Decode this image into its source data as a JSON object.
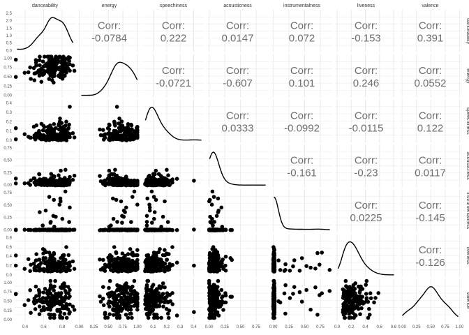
{
  "chart_data": {
    "type": "scatter-matrix",
    "variables": [
      "danceability",
      "energy",
      "speechiness",
      "acousticness",
      "instrumentalness",
      "liveness",
      "valence"
    ],
    "corr_label": "Corr:",
    "correlations": [
      {
        "row": "energy",
        "col": "danceability",
        "text": "-0.0784"
      },
      {
        "row": "speechiness",
        "col": "danceability",
        "text": "0.222"
      },
      {
        "row": "acousticness",
        "col": "danceability",
        "text": "0.0147"
      },
      {
        "row": "instrumentalness",
        "col": "danceability",
        "text": "0.072"
      },
      {
        "row": "liveness",
        "col": "danceability",
        "text": "-0.153"
      },
      {
        "row": "valence",
        "col": "danceability",
        "text": "0.391"
      },
      {
        "row": "speechiness",
        "col": "energy",
        "text": "-0.0721"
      },
      {
        "row": "acousticness",
        "col": "energy",
        "text": "-0.607"
      },
      {
        "row": "instrumentalness",
        "col": "energy",
        "text": "0.101"
      },
      {
        "row": "liveness",
        "col": "energy",
        "text": "0.246"
      },
      {
        "row": "valence",
        "col": "energy",
        "text": "0.0552"
      },
      {
        "row": "acousticness",
        "col": "speechiness",
        "text": "0.0333"
      },
      {
        "row": "instrumentalness",
        "col": "speechiness",
        "text": "-0.0992"
      },
      {
        "row": "liveness",
        "col": "speechiness",
        "text": "-0.0115"
      },
      {
        "row": "valence",
        "col": "speechiness",
        "text": "0.122"
      },
      {
        "row": "instrumentalness",
        "col": "acousticness",
        "text": "-0.161"
      },
      {
        "row": "liveness",
        "col": "acousticness",
        "text": "-0.23"
      },
      {
        "row": "valence",
        "col": "acousticness",
        "text": "0.0117"
      },
      {
        "row": "liveness",
        "col": "instrumentalness",
        "text": "0.0225"
      },
      {
        "row": "valence",
        "col": "instrumentalness",
        "text": "-0.145"
      },
      {
        "row": "valence",
        "col": "liveness",
        "text": "-0.126"
      }
    ],
    "x_ticks": {
      "danceability": [
        "0.4",
        "0.6",
        "0.8"
      ],
      "energy": [
        "0.00",
        "0.25",
        "0.50",
        "0.75",
        "1.00"
      ],
      "speechiness": [
        "0.1",
        "0.2",
        "0.3",
        "0.4"
      ],
      "acousticness": [
        "0.00",
        "0.25",
        "0.50",
        "0.75"
      ],
      "instrumentalness": [
        "0.00",
        "0.25",
        "0.50",
        "0.75"
      ],
      "liveness": [
        "0.0",
        "0.2",
        "0.4",
        "0.6",
        "0.8"
      ],
      "valence": [
        "0.00",
        "0.25",
        "0.50",
        "0.75",
        "1.00"
      ]
    },
    "y_ticks": {
      "danceability": [
        "0.0",
        "0.5",
        "1.0",
        "1.5",
        "2.0",
        "2.5"
      ],
      "energy": [
        "0.00",
        "0.25",
        "0.50",
        "0.75",
        "1.00"
      ],
      "speechiness": [
        "0.0",
        "0.1",
        "0.2",
        "0.3",
        "0.4"
      ],
      "acousticness": [
        "0.00",
        "0.25",
        "0.50",
        "0.75"
      ],
      "instrumentalness": [
        "0.00",
        "0.25",
        "0.50",
        "0.75"
      ],
      "liveness": [
        "0.0",
        "0.2",
        "0.4",
        "0.6",
        "0.8"
      ],
      "valence": [
        "0.00",
        "0.25",
        "0.50",
        "0.75",
        "1.00"
      ]
    },
    "x_ranges": {
      "danceability": [
        0.28,
        0.95
      ],
      "energy": [
        -0.02,
        1.05
      ],
      "speechiness": [
        0.02,
        0.48
      ],
      "acousticness": [
        -0.04,
        0.95
      ],
      "instrumentalness": [
        -0.04,
        0.95
      ],
      "liveness": [
        -0.03,
        0.85
      ],
      "valence": [
        -0.05,
        1.03
      ]
    },
    "diagonal_density_top_ylim": [
      0,
      2.7
    ],
    "grid": true,
    "point_color": "#000000",
    "corr_text_color": "#6e6e6e",
    "grid_color": "#ebebeb"
  }
}
